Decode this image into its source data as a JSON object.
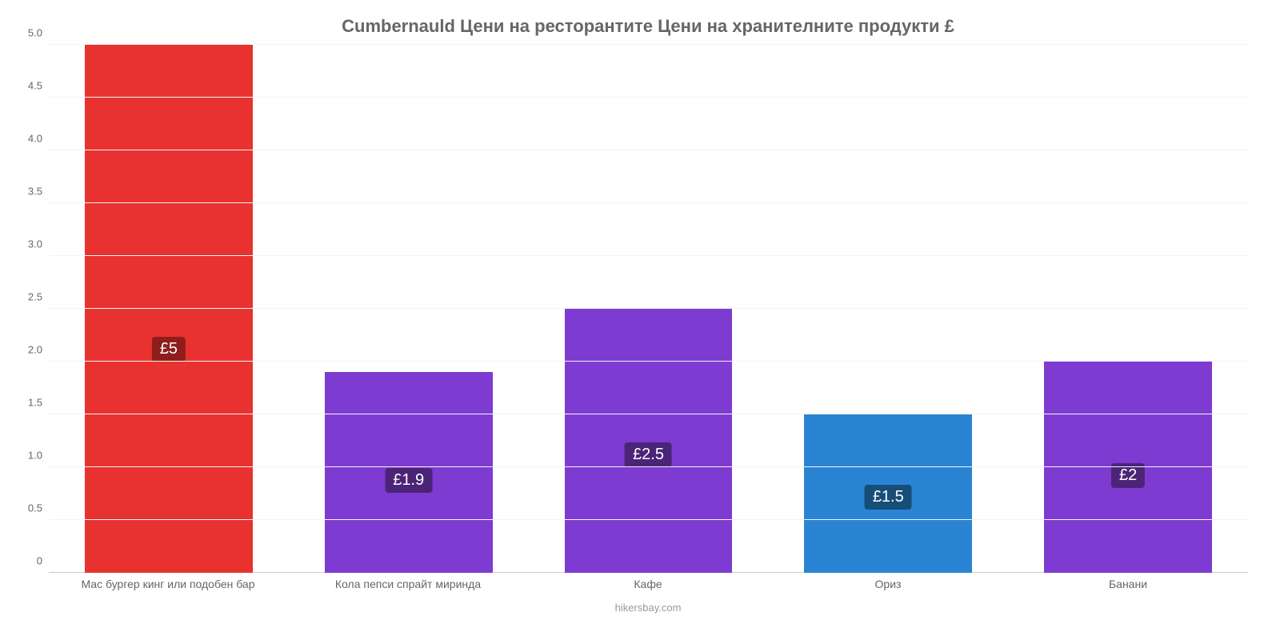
{
  "chart": {
    "type": "bar",
    "title": "Cumbernauld Цени на ресторантите Цени на хранителните продукти £",
    "title_fontsize": 22,
    "title_color": "#666666",
    "caption": "hikersbay.com",
    "caption_color": "#999999",
    "background_color": "#ffffff",
    "grid_color": "#f4f4f4",
    "axis_label_color": "#666666",
    "ylim": [
      0,
      5
    ],
    "ytick_step": 0.5,
    "yticks": [
      0,
      0.5,
      1.0,
      1.5,
      2.0,
      2.5,
      3.0,
      3.5,
      4.0,
      4.5,
      5.0
    ],
    "ytick_labels": [
      "0",
      "0.5",
      "1.0",
      "1.5",
      "2.0",
      "2.5",
      "3.0",
      "3.5",
      "4.0",
      "4.5",
      "5.0"
    ],
    "bar_width_pct": 70,
    "badge_fontsize": 20,
    "x_label_fontsize": 14,
    "categories": [
      "Мас бургер кинг или подобен бар",
      "Кола пепси спрайт миринда",
      "Кафе",
      "Ориз",
      "Банани"
    ],
    "values": [
      5,
      1.9,
      2.5,
      1.5,
      2
    ],
    "value_labels": [
      "£5",
      "£1.9",
      "£2.5",
      "£1.5",
      "£2"
    ],
    "bar_colors": [
      "#e8322f",
      "#7e3bd1",
      "#7e3bd1",
      "#2a84d4",
      "#7e3bd1"
    ],
    "badge_colors": [
      "#8e1e1c",
      "#4b2478",
      "#4b2478",
      "#174e78",
      "#4b2478"
    ],
    "badge_text_color": "#ffffff"
  }
}
